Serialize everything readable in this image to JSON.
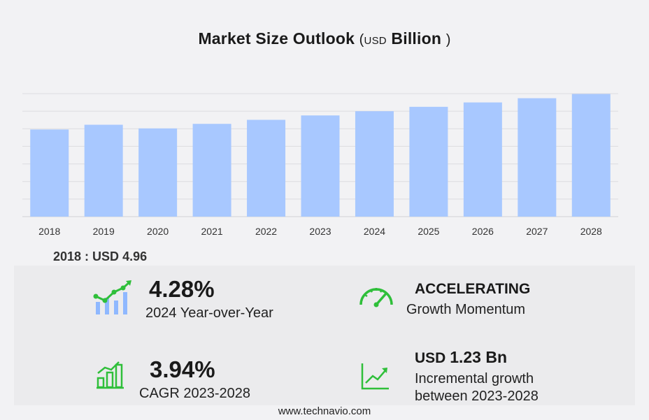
{
  "title": {
    "main": "Market Size Outlook",
    "open_paren": "(",
    "unit_small": "USD",
    "unit": "Billion",
    "close_paren": ")"
  },
  "chart_data": {
    "type": "bar",
    "categories": [
      "2018",
      "2019",
      "2020",
      "2021",
      "2022",
      "2023",
      "2024",
      "2025",
      "2026",
      "2027",
      "2028"
    ],
    "values": [
      4.96,
      5.23,
      5.02,
      5.28,
      5.51,
      5.76,
      6.0,
      6.25,
      6.5,
      6.74,
      6.98
    ],
    "ylim": [
      0,
      7.0
    ],
    "grid": true,
    "bar_color": "#a8c8ff"
  },
  "base_value": {
    "year": "2018",
    "sep": " : ",
    "currency": "USD",
    "value": "4.96"
  },
  "stats": {
    "yoy": {
      "value": "4.28%",
      "label": "2024 Year-over-Year"
    },
    "momentum": {
      "value": "ACCELERATING",
      "label": "Growth Momentum"
    },
    "cagr": {
      "value": "3.94%",
      "label": "CAGR 2023-2028"
    },
    "incremental": {
      "currency": "USD",
      "value": "1.23 Bn",
      "label_line1": "Incremental growth",
      "label_line2": "between 2023-2028"
    }
  },
  "colors": {
    "icon_green": "#2fbf3a",
    "bar": "#a8c8ff",
    "grid": "#dcdce0"
  },
  "footer": "www.technavio.com"
}
